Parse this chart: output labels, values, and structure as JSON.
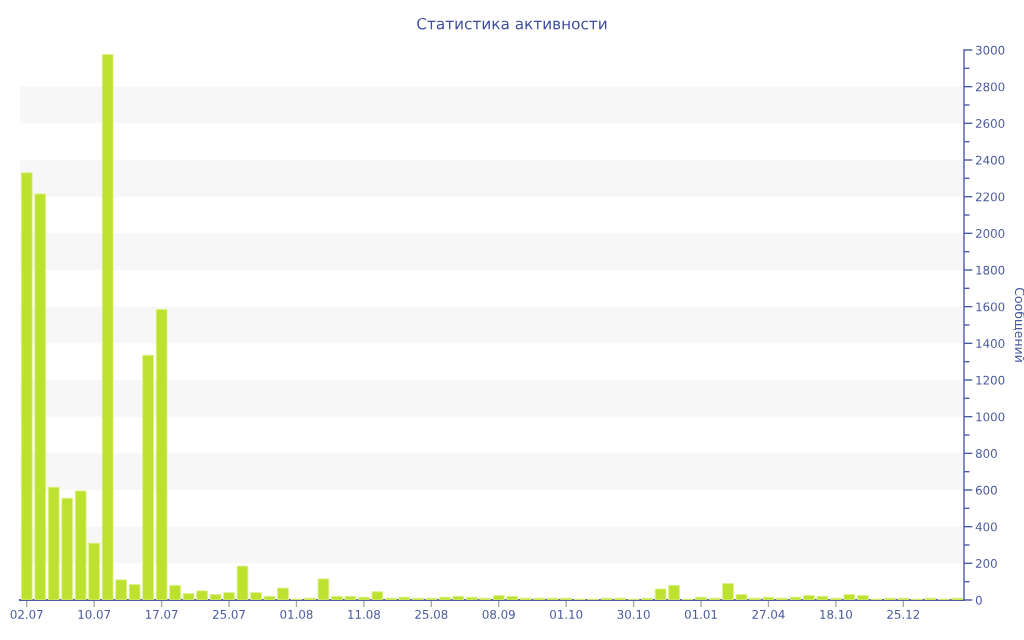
{
  "chart_data": {
    "type": "bar",
    "title": "Статистика активности",
    "ylabel": "Сообщений",
    "categories": [
      "02.07",
      null,
      null,
      null,
      null,
      "10.07",
      null,
      null,
      null,
      null,
      "17.07",
      null,
      null,
      null,
      null,
      "25.07",
      null,
      null,
      null,
      null,
      "01.08",
      null,
      null,
      null,
      null,
      "11.08",
      null,
      null,
      null,
      null,
      "25.08",
      null,
      null,
      null,
      null,
      "08.09",
      null,
      null,
      null,
      null,
      "01.10",
      null,
      null,
      null,
      null,
      "30.10",
      null,
      null,
      null,
      null,
      "01.01",
      null,
      null,
      null,
      null,
      "27.04",
      null,
      null,
      null,
      null,
      "18.10",
      null,
      null,
      null,
      null,
      "25.12",
      null,
      null,
      null,
      null
    ],
    "values": [
      2330,
      2215,
      615,
      555,
      595,
      310,
      2975,
      110,
      85,
      1335,
      1585,
      80,
      35,
      50,
      30,
      40,
      185,
      40,
      20,
      65,
      5,
      10,
      115,
      20,
      20,
      15,
      45,
      10,
      15,
      10,
      10,
      15,
      20,
      15,
      10,
      25,
      20,
      10,
      10,
      10,
      10,
      5,
      5,
      10,
      10,
      5,
      10,
      60,
      80,
      5,
      15,
      10,
      90,
      30,
      10,
      15,
      10,
      15,
      25,
      20,
      10,
      30,
      25,
      5,
      10,
      10,
      5,
      10,
      5,
      10
    ],
    "color": "#bde12f",
    "ylim": [
      0,
      3000
    ],
    "yticks": [
      0,
      200,
      400,
      600,
      800,
      1000,
      1200,
      1400,
      1600,
      1800,
      2000,
      2200,
      2400,
      2600,
      2800,
      3000
    ],
    "bands": [
      {
        "axis": "y",
        "from": 200,
        "to": 400,
        "color": "#f7f7f7"
      },
      {
        "axis": "y",
        "from": 600,
        "to": 800,
        "color": "#f7f7f7"
      },
      {
        "axis": "y",
        "from": 1000,
        "to": 1200,
        "color": "#f7f7f7"
      },
      {
        "axis": "y",
        "from": 1400,
        "to": 1600,
        "color": "#f7f7f7"
      },
      {
        "axis": "y",
        "from": 1800,
        "to": 2000,
        "color": "#f7f7f7"
      },
      {
        "axis": "y",
        "from": 2200,
        "to": 2400,
        "color": "#f7f7f7"
      },
      {
        "axis": "y",
        "from": 2600,
        "to": 2800,
        "color": "#f7f7f7"
      }
    ]
  }
}
